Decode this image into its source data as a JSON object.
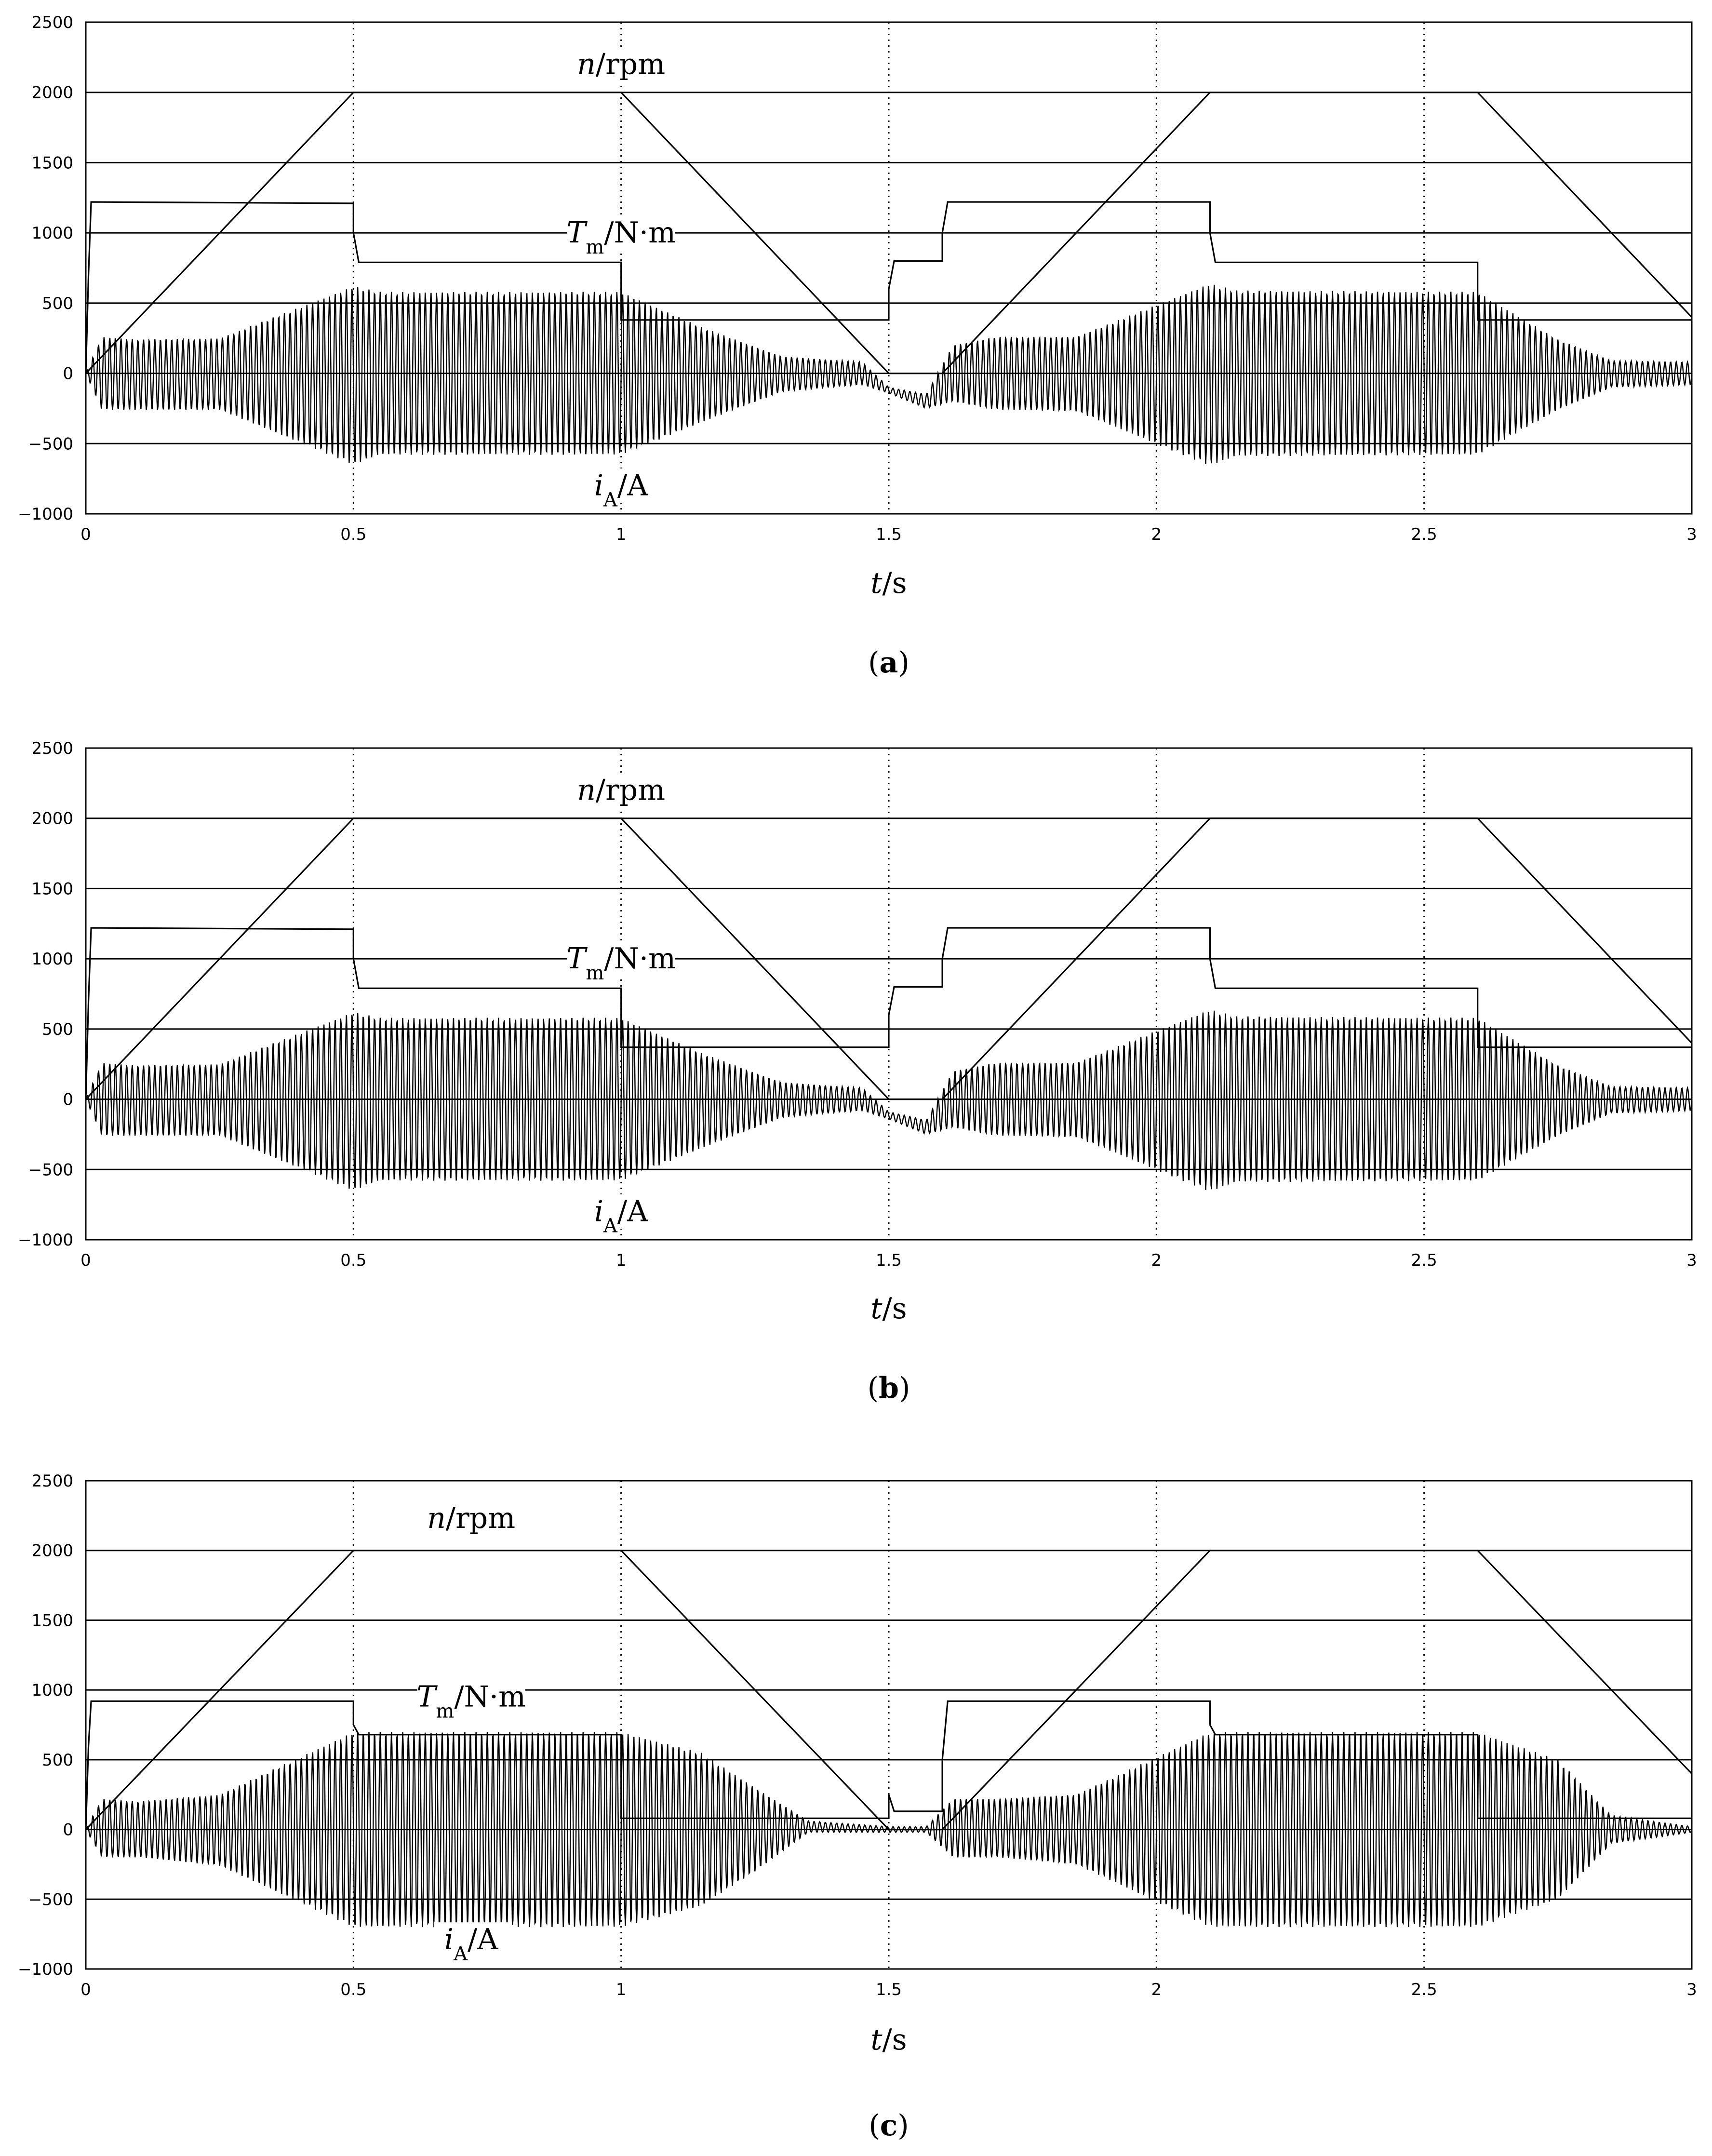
{
  "chart_data": [
    {
      "type": "line",
      "panel_caption": "a",
      "xlim": [
        0,
        3
      ],
      "ylim": [
        -1000,
        2500
      ],
      "x_ticks": [
        0,
        0.5,
        1,
        1.5,
        2,
        2.5,
        3
      ],
      "x_tick_labels": [
        "0",
        "0.5",
        "1",
        "1.5",
        "2",
        "2.5",
        "3"
      ],
      "y_ticks": [
        -1000,
        -500,
        0,
        500,
        1000,
        1500,
        2000,
        2500
      ],
      "y_tick_labels": [
        "−1000",
        "−500",
        "0",
        "500",
        "1000",
        "1500",
        "2000",
        "2500"
      ],
      "grid": {
        "horizontal": true,
        "vertical_dotted": [
          0.5,
          1,
          1.5,
          2,
          2.5
        ]
      },
      "xlabel": {
        "var": "t",
        "unit": "/s"
      },
      "series": [
        {
          "name": {
            "var": "n",
            "sub": "",
            "unit": "/rpm"
          },
          "x": [
            0,
            0.5,
            1.0,
            1.5,
            1.6,
            2.1,
            2.6,
            3.0
          ],
          "y": [
            0,
            2000,
            2000,
            0,
            0,
            2000,
            2000,
            400
          ]
        },
        {
          "name": {
            "var": "T",
            "sub": "m",
            "unit": "/N·m"
          },
          "x": [
            0,
            0.005,
            0.01,
            0.5,
            0.5,
            0.51,
            1.0,
            1.0,
            1.5,
            1.5,
            1.51,
            1.6,
            1.6,
            1.61,
            2.1,
            2.1,
            2.11,
            2.6,
            2.6,
            3.0
          ],
          "y": [
            0,
            700,
            1220,
            1210,
            1000,
            790,
            790,
            380,
            380,
            600,
            800,
            800,
            1000,
            1220,
            1220,
            1000,
            790,
            790,
            380,
            380
          ]
        },
        {
          "name": {
            "var": "i",
            "sub": "A",
            "unit": "/A"
          },
          "kind": "envelope",
          "x": [
            0,
            0.03,
            0.1,
            0.25,
            0.5,
            0.55,
            1.0,
            1.15,
            1.3,
            1.45,
            1.5,
            1.57,
            1.62,
            1.7,
            1.85,
            2.1,
            2.15,
            2.6,
            2.75,
            2.85,
            3.0
          ],
          "upper": [
            0,
            260,
            240,
            250,
            620,
            580,
            580,
            330,
            120,
            80,
            -100,
            -150,
            200,
            260,
            260,
            640,
            590,
            580,
            240,
            90,
            80
          ],
          "lower": [
            0,
            -260,
            -260,
            -260,
            -650,
            -580,
            -580,
            -350,
            -130,
            -80,
            -140,
            -250,
            -200,
            -260,
            -270,
            -660,
            -590,
            -580,
            -260,
            -100,
            -80
          ]
        }
      ],
      "annotations": [
        {
          "series": 0,
          "x": 1.0,
          "y": 2200
        },
        {
          "series": 1,
          "x": 1.0,
          "y": 1000
        },
        {
          "series": 2,
          "x": 1.0,
          "y": -800
        }
      ]
    },
    {
      "type": "line",
      "panel_caption": "b",
      "xlim": [
        0,
        3
      ],
      "ylim": [
        -1000,
        2500
      ],
      "x_ticks": [
        0,
        0.5,
        1,
        1.5,
        2,
        2.5,
        3
      ],
      "x_tick_labels": [
        "0",
        "0.5",
        "1",
        "1.5",
        "2",
        "2.5",
        "3"
      ],
      "y_ticks": [
        -1000,
        -500,
        0,
        500,
        1000,
        1500,
        2000,
        2500
      ],
      "y_tick_labels": [
        "−1000",
        "−500",
        "0",
        "500",
        "1000",
        "1500",
        "2000",
        "2500"
      ],
      "grid": {
        "horizontal": true,
        "vertical_dotted": [
          0.5,
          1,
          1.5,
          2,
          2.5
        ]
      },
      "xlabel": {
        "var": "t",
        "unit": "/s"
      },
      "series": [
        {
          "name": {
            "var": "n",
            "sub": "",
            "unit": "/rpm"
          },
          "x": [
            0,
            0.5,
            1.0,
            1.5,
            1.6,
            2.1,
            2.35,
            2.6,
            3.0
          ],
          "y": [
            0,
            2000,
            2000,
            0,
            0,
            2000,
            2000,
            2000,
            400
          ]
        },
        {
          "name": {
            "var": "T",
            "sub": "m",
            "unit": "/N·m"
          },
          "x": [
            0,
            0.005,
            0.01,
            0.5,
            0.5,
            0.51,
            1.0,
            1.0,
            1.5,
            1.5,
            1.51,
            1.6,
            1.6,
            1.61,
            2.1,
            2.1,
            2.11,
            2.6,
            2.6,
            3.0
          ],
          "y": [
            0,
            700,
            1220,
            1210,
            1000,
            790,
            790,
            370,
            370,
            600,
            800,
            800,
            1000,
            1220,
            1220,
            1000,
            790,
            790,
            370,
            370
          ]
        },
        {
          "name": {
            "var": "i",
            "sub": "A",
            "unit": "/A"
          },
          "kind": "envelope",
          "x": [
            0,
            0.03,
            0.1,
            0.25,
            0.5,
            0.55,
            1.0,
            1.15,
            1.3,
            1.45,
            1.5,
            1.57,
            1.62,
            1.7,
            1.85,
            2.1,
            2.15,
            2.6,
            2.75,
            2.85,
            3.0
          ],
          "upper": [
            0,
            260,
            240,
            250,
            620,
            580,
            580,
            330,
            120,
            80,
            -90,
            -150,
            200,
            260,
            260,
            640,
            590,
            580,
            240,
            90,
            80
          ],
          "lower": [
            0,
            -260,
            -260,
            -260,
            -650,
            -580,
            -580,
            -350,
            -130,
            -80,
            -140,
            -250,
            -200,
            -260,
            -270,
            -660,
            -590,
            -580,
            -260,
            -100,
            -80
          ]
        }
      ],
      "annotations": [
        {
          "series": 0,
          "x": 1.0,
          "y": 2200
        },
        {
          "series": 1,
          "x": 1.0,
          "y": 1000
        },
        {
          "series": 2,
          "x": 1.0,
          "y": -800
        }
      ]
    },
    {
      "type": "line",
      "panel_caption": "c",
      "xlim": [
        0,
        3
      ],
      "ylim": [
        -1000,
        2500
      ],
      "x_ticks": [
        0,
        0.5,
        1,
        1.5,
        2,
        2.5,
        3
      ],
      "x_tick_labels": [
        "0",
        "0.5",
        "1",
        "1.5",
        "2",
        "2.5",
        "3"
      ],
      "y_ticks": [
        -1000,
        -500,
        0,
        500,
        1000,
        1500,
        2000,
        2500
      ],
      "y_tick_labels": [
        "−1000",
        "−500",
        "0",
        "500",
        "1000",
        "1500",
        "2000",
        "2500"
      ],
      "grid": {
        "horizontal": true,
        "vertical_dotted": [
          0.5,
          1,
          1.5,
          2,
          2.5
        ]
      },
      "xlabel": {
        "var": "t",
        "unit": "/s"
      },
      "series": [
        {
          "name": {
            "var": "n",
            "sub": "",
            "unit": "/rpm"
          },
          "x": [
            0,
            0.5,
            0.55,
            1.0,
            1.5,
            1.6,
            2.1,
            2.3,
            2.6,
            3.0
          ],
          "y": [
            0,
            2000,
            2000,
            2000,
            0,
            0,
            2000,
            2000,
            2000,
            400
          ]
        },
        {
          "name": {
            "var": "T",
            "sub": "m",
            "unit": "/N·m"
          },
          "x": [
            0,
            0.005,
            0.01,
            0.5,
            0.5,
            0.51,
            1.0,
            1.0,
            1.5,
            1.5,
            1.51,
            1.6,
            1.6,
            1.61,
            2.1,
            2.1,
            2.11,
            2.6,
            2.6,
            3.0
          ],
          "y": [
            0,
            600,
            920,
            920,
            750,
            680,
            680,
            80,
            80,
            250,
            130,
            130,
            500,
            920,
            920,
            750,
            680,
            680,
            80,
            80
          ]
        },
        {
          "name": {
            "var": "i",
            "sub": "A",
            "unit": "/A"
          },
          "kind": "envelope",
          "x": [
            0,
            0.03,
            0.1,
            0.25,
            0.5,
            0.55,
            1.0,
            1.15,
            1.25,
            1.35,
            1.5,
            1.57,
            1.62,
            1.7,
            1.85,
            2.1,
            2.15,
            2.6,
            2.75,
            2.85,
            3.0
          ],
          "upper": [
            0,
            220,
            200,
            250,
            700,
            700,
            700,
            550,
            300,
            60,
            20,
            20,
            220,
            220,
            250,
            700,
            700,
            700,
            500,
            100,
            20
          ],
          "lower": [
            0,
            -200,
            -200,
            -260,
            -700,
            -700,
            -700,
            -550,
            -300,
            -20,
            -20,
            -20,
            -200,
            -200,
            -250,
            -700,
            -700,
            -700,
            -500,
            -100,
            -20
          ]
        }
      ],
      "annotations": [
        {
          "series": 0,
          "x": 0.72,
          "y": 2230
        },
        {
          "series": 1,
          "x": 0.72,
          "y": 950
        },
        {
          "series": 2,
          "x": 0.72,
          "y": -790
        }
      ]
    }
  ]
}
